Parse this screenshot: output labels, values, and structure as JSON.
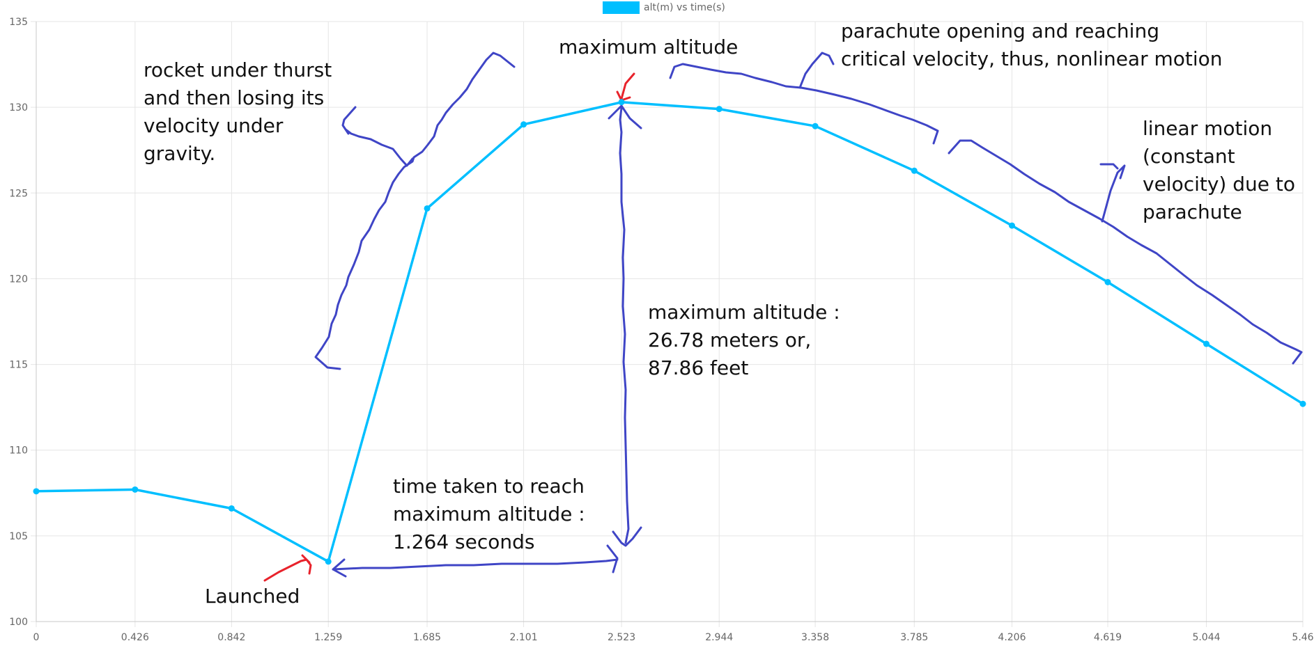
{
  "chart_data": {
    "type": "line",
    "legend": {
      "label": "alt(m) vs time(s)",
      "color": "#00bfff",
      "placement": "top-center"
    },
    "x": [
      0,
      0.426,
      0.842,
      1.259,
      1.685,
      2.101,
      2.523,
      2.944,
      3.358,
      3.785,
      4.206,
      4.619,
      5.044,
      5.46
    ],
    "x_tick_labels": [
      "0",
      "0.426",
      "0.842",
      "1.259",
      "1.685",
      "2.101",
      "2.523",
      "2.944",
      "3.358",
      "3.785",
      "4.206",
      "4.619",
      "5.044",
      "5.46"
    ],
    "series": [
      {
        "name": "alt(m) vs time(s)",
        "values": [
          107.6,
          107.7,
          106.6,
          103.5,
          124.1,
          129.0,
          130.3,
          129.9,
          128.9,
          126.3,
          123.1,
          119.8,
          116.2,
          112.7
        ]
      }
    ],
    "ylim": [
      100,
      135
    ],
    "y_ticks": [
      100,
      105,
      110,
      115,
      120,
      125,
      130,
      135
    ],
    "grid": true,
    "annotations": [
      {
        "id": "thrust",
        "lines": [
          "rocket under thurst",
          "and then losing its",
          "velocity under",
          "gravity."
        ]
      },
      {
        "id": "max",
        "lines": [
          "maximum altitude"
        ]
      },
      {
        "id": "parachute",
        "lines": [
          "parachute opening and reaching",
          "critical velocity, thus, nonlinear motion"
        ]
      },
      {
        "id": "linear",
        "lines": [
          "linear motion",
          "(constant",
          "velocity) due to",
          "parachute"
        ]
      },
      {
        "id": "altvalue",
        "lines": [
          "maximum altitude :",
          "26.78 meters or,",
          "87.86 feet"
        ]
      },
      {
        "id": "time",
        "lines": [
          "time taken to reach",
          "maximum altitude :",
          "1.264 seconds"
        ]
      },
      {
        "id": "launched",
        "lines": [
          "Launched"
        ]
      }
    ],
    "colors": {
      "line": "#00bfff",
      "ink_blue": "#3f45c6",
      "ink_red": "#e8222b",
      "grid": "#e5e5e5"
    }
  }
}
